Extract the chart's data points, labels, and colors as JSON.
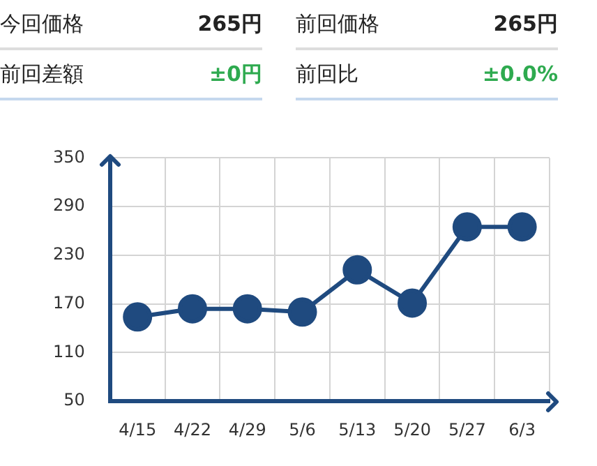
{
  "chart_data": [
    {
      "type": "other",
      "annotations": [
        "今回価格",
        "265円",
        "前回価格",
        "265円",
        "前回差額",
        "±0円",
        "前回比",
        "±0.0%"
      ]
    },
    {
      "type": "line",
      "categories": [
        "4/15",
        "4/22",
        "4/29",
        "5/6",
        "5/13",
        "5/20",
        "5/27",
        "6/3"
      ],
      "values": [
        154,
        164,
        164,
        160,
        212,
        171,
        265,
        265
      ],
      "color": "#1f4a7f",
      "ylim": [
        50,
        350
      ],
      "yticks": [
        50,
        110,
        170,
        230,
        290,
        350
      ],
      "grid": true,
      "marker": "circle",
      "line_style": "solid"
    }
  ]
}
